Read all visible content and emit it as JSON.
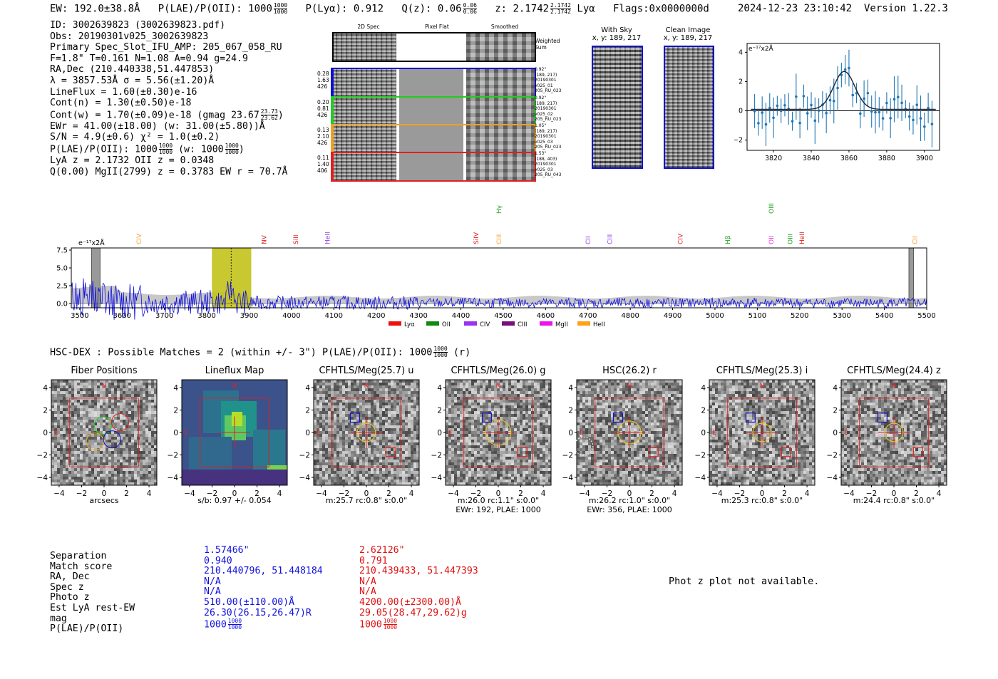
{
  "header": {
    "ew": "EW: 192.0±38.8Å",
    "plae_label": "P(LAE)/P(OII): 1000",
    "plae_frac": [
      "1000",
      "1000"
    ],
    "plya": "P(Lyα): 0.912",
    "qz_label": "Q(z): 0.06",
    "qz_frac": [
      "0.06",
      "0.06"
    ],
    "z_label": "z: 2.1742",
    "z_frac": [
      "2.1742",
      "2.1742"
    ],
    "line": "Lyα",
    "flags": "Flags:0x0000000d",
    "timestamp": "2024-12-23 23:10:42",
    "version": "Version 1.22.3"
  },
  "info": {
    "id": "ID: 3002639823 (3002639823.pdf)",
    "obs": "Obs: 20190301v025_3002639823",
    "primary": "Primary Spec_Slot_IFU_AMP: 205_067_058_RU",
    "fit": "F=1.8\"  T=0.161  N=1.08  A=0.94  g=24.9",
    "radec": "RA,Dec (210.440338,51.447853)",
    "lambda": "λ = 3857.53Å  σ = 5.56(±1.20)Å",
    "lineflux": "LineFlux = 1.60(±0.30)e-16",
    "contn": "Cont(n) = 1.30(±0.50)e-18",
    "contw": "Cont(w) = 1.70(±0.09)e-18 (gmag 23.67",
    "contw_frac": [
      "23.73",
      "23.62"
    ],
    "contw_end": ")",
    "ewr": "EWr = 41.00(±18.00) (w: 31.00(±5.80))Å",
    "sn": "S/N = 4.9(±0.6)  χ² = 1.0(±0.2)",
    "plae": "P(LAE)/P(OII): 1000",
    "plae_frac": [
      "1000",
      "1000"
    ],
    "plae_w": "(w: 1000",
    "plae_w_frac": [
      "1000",
      "1000"
    ],
    "plae_w_end": ")",
    "lya": "LyA z = 2.1732  OII z = 0.0348",
    "q": "Q(0.00) MgII(2799) z = 0.3783  EW r = 70.7Å"
  },
  "spec2d": {
    "col_headers": [
      "2D Spec",
      "Pixel Flat",
      "Smoothed"
    ],
    "weighted": "Weighted Sum",
    "rows": [
      {
        "left": [
          "0.28",
          "1.63",
          "426"
        ],
        "right": [
          "0.92\"",
          "(189, 217)",
          "20190301",
          "v025_01",
          "205_RU_023"
        ],
        "color": "#1010d0"
      },
      {
        "left": [
          "0.20",
          "0.81",
          "426"
        ],
        "right": [
          "0.92\"",
          "(189, 217)",
          "20190301",
          "v025_02",
          "205_RU_023"
        ],
        "color": "#22cc22"
      },
      {
        "left": [
          "0.13",
          "2.10",
          "426"
        ],
        "right": [
          "1.05\"",
          "(189, 217)",
          "20190301",
          "v025_03",
          "205_RU_023"
        ],
        "color": "#f0a020"
      },
      {
        "left": [
          "0.11",
          "1.40",
          "406"
        ],
        "right": [
          "1.53\"",
          "(188, 403)",
          "20190301",
          "v025_03",
          "205_RU_043"
        ],
        "color": "#e02020"
      }
    ]
  },
  "sky": {
    "title": "With Sky",
    "coords": "x, y: 189, 217"
  },
  "clean": {
    "title": "Clean Image",
    "coords": "x, y: 189, 217"
  },
  "gauss": {
    "unit": "e⁻¹⁷x2Å",
    "xticks": [
      "3820",
      "3840",
      "3860",
      "3880",
      "3900"
    ],
    "yticks": [
      "4",
      "2",
      "0",
      "−2"
    ]
  },
  "spectrum": {
    "unit": "e⁻¹⁷x2Å",
    "yticks": [
      "7.5",
      "5.0",
      "2.5",
      "0.0"
    ],
    "xticks": [
      "3500",
      "3600",
      "3700",
      "3800",
      "3900",
      "4000",
      "4100",
      "4200",
      "4300",
      "4400",
      "4500",
      "4600",
      "4700",
      "4800",
      "4900",
      "5000",
      "5100",
      "5200",
      "5300",
      "5400",
      "5500"
    ],
    "lines": [
      {
        "label": "CIV",
        "color": "#f0a020",
        "wl": 3640
      },
      {
        "label": "NV",
        "color": "#e02020",
        "wl": 3935
      },
      {
        "label": "SiII",
        "color": "#e02020",
        "wl": 4010
      },
      {
        "label": "HeII",
        "color": "#9040e0",
        "wl": 4085
      },
      {
        "label": "SiIV",
        "color": "#e02020",
        "wl": 4436
      },
      {
        "label": "CIII",
        "color": "#f0a020",
        "wl": 4490
      },
      {
        "label": "Hγ",
        "color": "#20a020",
        "wl": 4490
      },
      {
        "label": "CII",
        "color": "#9040e0",
        "wl": 4700
      },
      {
        "label": "CIII",
        "color": "#9040e0",
        "wl": 4752
      },
      {
        "label": "CIV",
        "color": "#e02020",
        "wl": 4918
      },
      {
        "label": "Hβ",
        "color": "#20a020",
        "wl": 5030
      },
      {
        "label": "OII",
        "color": "#e040e0",
        "wl": 5133
      },
      {
        "label": "OIII",
        "color": "#20a020",
        "wl": 5133
      },
      {
        "label": "OIII",
        "color": "#20a020",
        "wl": 5178
      },
      {
        "label": "HeII",
        "color": "#e02020",
        "wl": 5205
      },
      {
        "label": "CII",
        "color": "#f0a020",
        "wl": 5472
      }
    ],
    "legend": [
      {
        "label": "Lyα",
        "color": "#ee1111"
      },
      {
        "label": "OII",
        "color": "#118811"
      },
      {
        "label": "CIV",
        "color": "#9933ee"
      },
      {
        "label": "CIII",
        "color": "#771177"
      },
      {
        "label": "MgII",
        "color": "#ee11ee"
      },
      {
        "label": "HeII",
        "color": "#ffa01a"
      }
    ]
  },
  "hsc": {
    "title": "HSC-DEX : Possible Matches = 2 (within +/- 3\")  P(LAE)/P(OII): 1000",
    "frac": [
      "1000",
      "1000"
    ],
    "band": "(r)"
  },
  "cutouts": [
    {
      "title": "Fiber Positions",
      "cap": [
        "arcsecs"
      ]
    },
    {
      "title": "Lineflux Map",
      "cap": [
        "s/b: 0.97 +/- 0.054"
      ]
    },
    {
      "title": "CFHTLS/Meg(25.7) u",
      "cap": [
        "m:25.7 rc:0.8\"  s:0.0\""
      ]
    },
    {
      "title": "CFHTLS/Meg(26.0) g",
      "cap": [
        "m:26.0 rc:1.1\"  s:0.0\"",
        "EWr: 192, PLAE: 1000"
      ]
    },
    {
      "title": "HSC(26.2) r",
      "cap": [
        "m:26.2 rc:1.0\"  s:0.0\"",
        "EWr: 356, PLAE: 1000"
      ]
    },
    {
      "title": "CFHTLS/Meg(25.3) i",
      "cap": [
        "m:25.3 rc:0.8\"  s:0.0\""
      ]
    },
    {
      "title": "CFHTLS/Meg(24.4) z",
      "cap": [
        "m:24.4 rc:0.8\"  s:0.0\""
      ]
    }
  ],
  "cut_axes": {
    "ticks": [
      "4",
      "2",
      "0",
      "−2",
      "−4"
    ],
    "xticks": [
      "−4",
      "−2",
      "0",
      "2",
      "4"
    ],
    "north": "N",
    "east": "E"
  },
  "table": {
    "labels": [
      "Separation",
      "Match score",
      "RA, Dec",
      "Spec z",
      "Photo z",
      "Est LyA rest-EW",
      "mag",
      "P(LAE)/P(OII)"
    ],
    "col1": [
      "1.57466\"",
      "0.940",
      "210.440796, 51.448184",
      "N/A",
      "N/A",
      "510.00(±110.00)Å",
      "26.30(26.15,26.47)R",
      "1000"
    ],
    "col2": [
      "2.62126\"",
      "0.791",
      "210.439433, 51.447393",
      "N/A",
      "N/A",
      "4200.00(±2300.00)Å",
      "29.05(28.47,29.62)g",
      "1000"
    ],
    "frac": [
      "1000",
      "1000"
    ],
    "col1_color": "#1010e0",
    "col2_color": "#e01010"
  },
  "photz": "Phot z plot not available."
}
